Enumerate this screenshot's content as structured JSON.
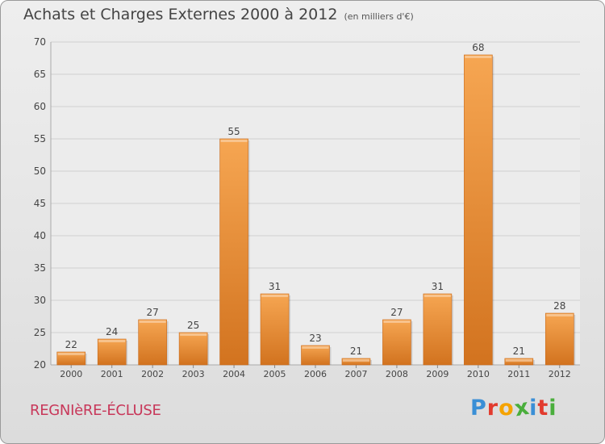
{
  "header": {
    "title": "Achats et Charges Externes 2000 à 2012",
    "subtitle": "(en milliers d'€)"
  },
  "footer": {
    "commune": "REGNIèRE-ÉCLUSE",
    "brand": "Proxiti"
  },
  "colors": {
    "bar_top": "#f6a652",
    "bar_bottom": "#d2731f",
    "commune_text": "#c8385a",
    "brand_letters": [
      "#3a8fd6",
      "#e23b2e",
      "#f5a300",
      "#4aae3c",
      "#3a8fd6",
      "#e23b2e",
      "#4aae3c"
    ]
  },
  "chart_data": {
    "type": "bar",
    "title": "Achats et Charges Externes 2000 à 2012",
    "subtitle": "(en milliers d'€)",
    "categories": [
      "2000",
      "2001",
      "2002",
      "2003",
      "2004",
      "2005",
      "2006",
      "2007",
      "2008",
      "2009",
      "2010",
      "2011",
      "2012"
    ],
    "values": [
      22,
      24,
      27,
      25,
      55,
      31,
      23,
      21,
      27,
      31,
      68,
      21,
      28
    ],
    "ylim": [
      20,
      70
    ],
    "yticks": [
      20,
      25,
      30,
      35,
      40,
      45,
      50,
      55,
      60,
      65,
      70
    ],
    "grid": true
  }
}
